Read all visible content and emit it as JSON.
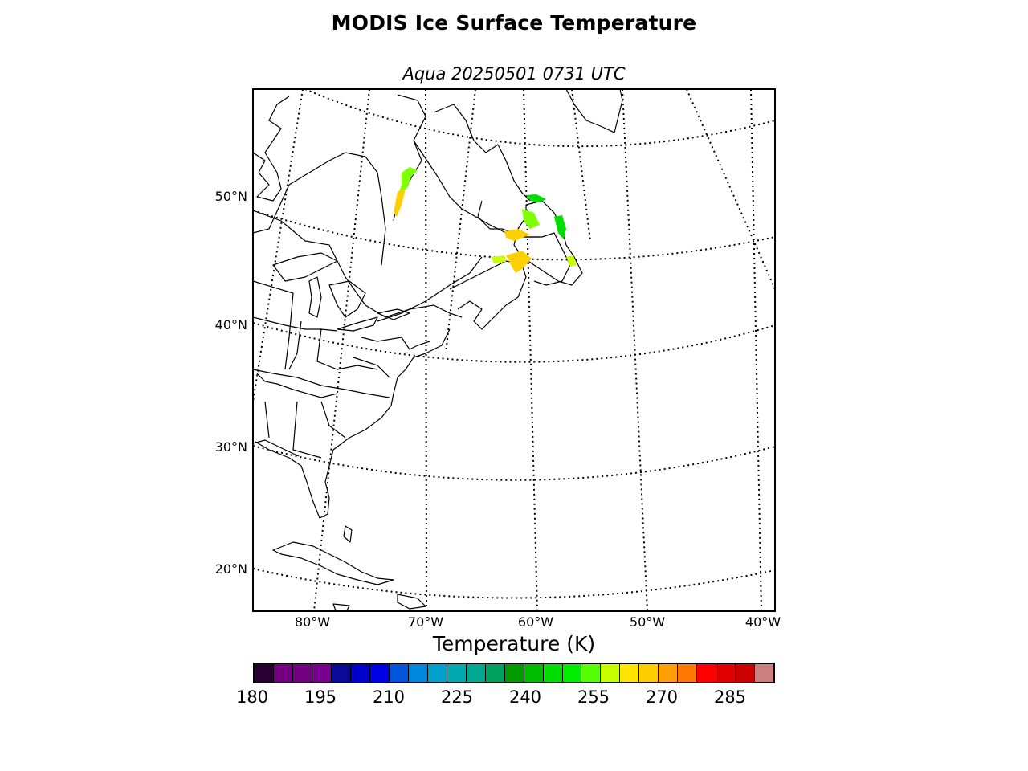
{
  "title": "MODIS Ice Surface Temperature",
  "subtitle": "Aqua 20250501 0731 UTC",
  "latitude_labels": [
    "50°N",
    "40°N",
    "30°N",
    "20°N"
  ],
  "longitude_labels": [
    "80°W",
    "70°W",
    "60°W",
    "50°W",
    "40°W"
  ],
  "colorbar": {
    "title": "Temperature (K)",
    "min": 180,
    "max": 294,
    "step": 5,
    "tick_labels": [
      "180",
      "195",
      "210",
      "225",
      "240",
      "255",
      "270",
      "285"
    ],
    "colors": [
      "#2a0033",
      "#730080",
      "#730080",
      "#7a0090",
      "#0a0a99",
      "#0000cc",
      "#0000e6",
      "#0055dd",
      "#0088dd",
      "#00a0cc",
      "#00a8b0",
      "#00a890",
      "#00a060",
      "#009900",
      "#00bb00",
      "#00dd00",
      "#00ee00",
      "#55ff00",
      "#c8ff00",
      "#ffe600",
      "#ffcc00",
      "#ffa000",
      "#ff7a00",
      "#ff0000",
      "#e00000",
      "#cc0000",
      "#cc8080"
    ]
  },
  "colors": {
    "coastline": "#000000",
    "graticule": "#000000",
    "ice_low": "#00dd00",
    "ice_mid": "#7fff00",
    "ice_high": "#ffd000"
  }
}
